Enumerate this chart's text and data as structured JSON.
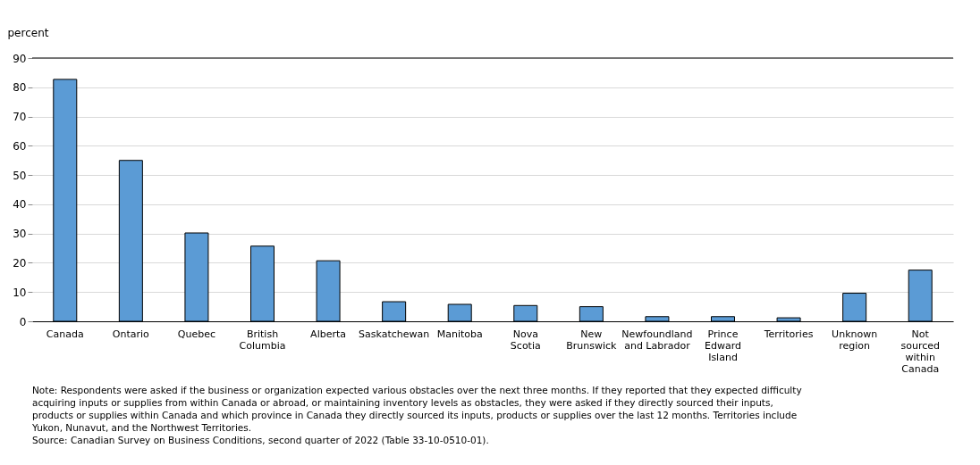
{
  "chart_data": {
    "type": "bar",
    "ylabel": "percent",
    "categories": [
      "Canada",
      "Ontario",
      "Quebec",
      "British\nColumbia",
      "Alberta",
      "Saskatchewan",
      "Manitoba",
      "Nova\nScotia",
      "New\nBrunswick",
      "Newfoundland\nand Labrador",
      "Prince\nEdward\nIsland",
      "Territories",
      "Unknown\nregion",
      "Not\nsourced\nwithin\nCanada"
    ],
    "values": [
      82.7,
      55.0,
      30.2,
      25.7,
      20.7,
      6.7,
      5.8,
      5.4,
      5.0,
      1.6,
      1.6,
      1.2,
      9.6,
      17.5
    ],
    "color": "#5b9bd5",
    "ylim": [
      0,
      90
    ],
    "yticks": [
      0,
      10,
      20,
      30,
      40,
      50,
      60,
      70,
      80,
      90
    ],
    "grid": "y",
    "annotations": [
      "Note: Respondents were asked if the business or organization expected various obstacles over the next three months. If they reported that they expected difficulty acquiring inputs or supplies from within Canada or abroad, or maintaining inventory levels as obstacles, they were asked if they directly sourced their inputs, products or supplies within Canada and which province in Canada they directly sourced its inputs, products or supplies over the last 12 months. Territories include Yukon, Nunavut, and the Northwest Territories.",
      "Source: Canadian Survey on Business Conditions, second quarter of 2022 (Table 33-10-0510-01)."
    ]
  }
}
